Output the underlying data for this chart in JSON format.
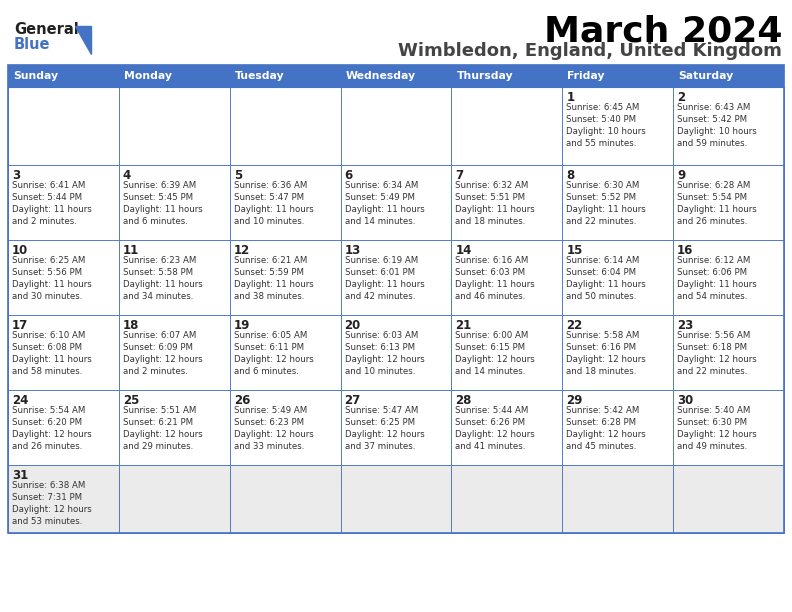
{
  "title": "March 2024",
  "subtitle": "Wimbledon, England, United Kingdom",
  "header_bg": "#4472C4",
  "header_text_color": "#FFFFFF",
  "cell_bg_normal": "#FFFFFF",
  "cell_bg_last": "#EBEBEB",
  "border_color": "#4472C4",
  "text_color": "#222222",
  "logo_text_color": "#4472C4",
  "logo_general_color": "#333333",
  "day_names": [
    "Sunday",
    "Monday",
    "Tuesday",
    "Wednesday",
    "Thursday",
    "Friday",
    "Saturday"
  ],
  "weeks": [
    [
      {
        "day": "",
        "info": ""
      },
      {
        "day": "",
        "info": ""
      },
      {
        "day": "",
        "info": ""
      },
      {
        "day": "",
        "info": ""
      },
      {
        "day": "",
        "info": ""
      },
      {
        "day": "1",
        "info": "Sunrise: 6:45 AM\nSunset: 5:40 PM\nDaylight: 10 hours\nand 55 minutes."
      },
      {
        "day": "2",
        "info": "Sunrise: 6:43 AM\nSunset: 5:42 PM\nDaylight: 10 hours\nand 59 minutes."
      }
    ],
    [
      {
        "day": "3",
        "info": "Sunrise: 6:41 AM\nSunset: 5:44 PM\nDaylight: 11 hours\nand 2 minutes."
      },
      {
        "day": "4",
        "info": "Sunrise: 6:39 AM\nSunset: 5:45 PM\nDaylight: 11 hours\nand 6 minutes."
      },
      {
        "day": "5",
        "info": "Sunrise: 6:36 AM\nSunset: 5:47 PM\nDaylight: 11 hours\nand 10 minutes."
      },
      {
        "day": "6",
        "info": "Sunrise: 6:34 AM\nSunset: 5:49 PM\nDaylight: 11 hours\nand 14 minutes."
      },
      {
        "day": "7",
        "info": "Sunrise: 6:32 AM\nSunset: 5:51 PM\nDaylight: 11 hours\nand 18 minutes."
      },
      {
        "day": "8",
        "info": "Sunrise: 6:30 AM\nSunset: 5:52 PM\nDaylight: 11 hours\nand 22 minutes."
      },
      {
        "day": "9",
        "info": "Sunrise: 6:28 AM\nSunset: 5:54 PM\nDaylight: 11 hours\nand 26 minutes."
      }
    ],
    [
      {
        "day": "10",
        "info": "Sunrise: 6:25 AM\nSunset: 5:56 PM\nDaylight: 11 hours\nand 30 minutes."
      },
      {
        "day": "11",
        "info": "Sunrise: 6:23 AM\nSunset: 5:58 PM\nDaylight: 11 hours\nand 34 minutes."
      },
      {
        "day": "12",
        "info": "Sunrise: 6:21 AM\nSunset: 5:59 PM\nDaylight: 11 hours\nand 38 minutes."
      },
      {
        "day": "13",
        "info": "Sunrise: 6:19 AM\nSunset: 6:01 PM\nDaylight: 11 hours\nand 42 minutes."
      },
      {
        "day": "14",
        "info": "Sunrise: 6:16 AM\nSunset: 6:03 PM\nDaylight: 11 hours\nand 46 minutes."
      },
      {
        "day": "15",
        "info": "Sunrise: 6:14 AM\nSunset: 6:04 PM\nDaylight: 11 hours\nand 50 minutes."
      },
      {
        "day": "16",
        "info": "Sunrise: 6:12 AM\nSunset: 6:06 PM\nDaylight: 11 hours\nand 54 minutes."
      }
    ],
    [
      {
        "day": "17",
        "info": "Sunrise: 6:10 AM\nSunset: 6:08 PM\nDaylight: 11 hours\nand 58 minutes."
      },
      {
        "day": "18",
        "info": "Sunrise: 6:07 AM\nSunset: 6:09 PM\nDaylight: 12 hours\nand 2 minutes."
      },
      {
        "day": "19",
        "info": "Sunrise: 6:05 AM\nSunset: 6:11 PM\nDaylight: 12 hours\nand 6 minutes."
      },
      {
        "day": "20",
        "info": "Sunrise: 6:03 AM\nSunset: 6:13 PM\nDaylight: 12 hours\nand 10 minutes."
      },
      {
        "day": "21",
        "info": "Sunrise: 6:00 AM\nSunset: 6:15 PM\nDaylight: 12 hours\nand 14 minutes."
      },
      {
        "day": "22",
        "info": "Sunrise: 5:58 AM\nSunset: 6:16 PM\nDaylight: 12 hours\nand 18 minutes."
      },
      {
        "day": "23",
        "info": "Sunrise: 5:56 AM\nSunset: 6:18 PM\nDaylight: 12 hours\nand 22 minutes."
      }
    ],
    [
      {
        "day": "24",
        "info": "Sunrise: 5:54 AM\nSunset: 6:20 PM\nDaylight: 12 hours\nand 26 minutes."
      },
      {
        "day": "25",
        "info": "Sunrise: 5:51 AM\nSunset: 6:21 PM\nDaylight: 12 hours\nand 29 minutes."
      },
      {
        "day": "26",
        "info": "Sunrise: 5:49 AM\nSunset: 6:23 PM\nDaylight: 12 hours\nand 33 minutes."
      },
      {
        "day": "27",
        "info": "Sunrise: 5:47 AM\nSunset: 6:25 PM\nDaylight: 12 hours\nand 37 minutes."
      },
      {
        "day": "28",
        "info": "Sunrise: 5:44 AM\nSunset: 6:26 PM\nDaylight: 12 hours\nand 41 minutes."
      },
      {
        "day": "29",
        "info": "Sunrise: 5:42 AM\nSunset: 6:28 PM\nDaylight: 12 hours\nand 45 minutes."
      },
      {
        "day": "30",
        "info": "Sunrise: 5:40 AM\nSunset: 6:30 PM\nDaylight: 12 hours\nand 49 minutes."
      }
    ],
    [
      {
        "day": "31",
        "info": "Sunrise: 6:38 AM\nSunset: 7:31 PM\nDaylight: 12 hours\nand 53 minutes."
      },
      {
        "day": "",
        "info": ""
      },
      {
        "day": "",
        "info": ""
      },
      {
        "day": "",
        "info": ""
      },
      {
        "day": "",
        "info": ""
      },
      {
        "day": "",
        "info": ""
      },
      {
        "day": "",
        "info": ""
      }
    ]
  ]
}
